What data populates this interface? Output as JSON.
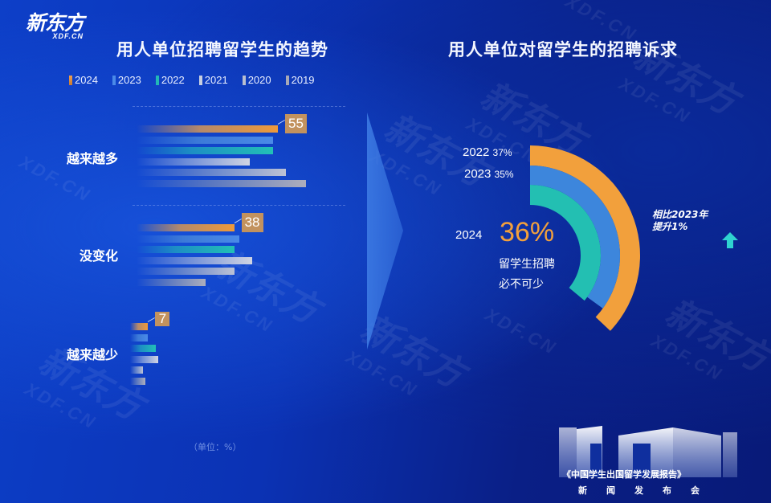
{
  "logo": {
    "chinese": "新东方",
    "english": "XDF.CN"
  },
  "watermark_text": "XDF.CN",
  "left_panel": {
    "title": "用人单位招聘留学生的趋势",
    "legend": [
      {
        "label": "2024",
        "color": "#e8963a"
      },
      {
        "label": "2023",
        "color": "#4a8ae8"
      },
      {
        "label": "2022",
        "color": "#22b8b6"
      },
      {
        "label": "2021",
        "color": "#c8cfe0"
      },
      {
        "label": "2020",
        "color": "#b8bfd0"
      },
      {
        "label": "2019",
        "color": "#a8a9b6"
      }
    ],
    "unit": "（单位：%）"
  },
  "right_panel": {
    "title": "用人单位对留学生的招聘诉求",
    "ring_labels": [
      {
        "year": "2022",
        "pct": "37%"
      },
      {
        "year": "2023",
        "pct": "35%"
      }
    ],
    "highlight_year": "2024",
    "highlight_pct": "36%",
    "note_line1": "留学生招聘",
    "note_line2": "必不可少",
    "compare_line1": "相比2023年",
    "compare_line2": "提升1%",
    "compare_icon": "up-arrow-icon"
  },
  "footer": {
    "report_title": "《中国学生出国留学发展报告》",
    "event": "新闻发布会",
    "badge_icon": "10-book-icon"
  },
  "chart_data": [
    {
      "type": "bar",
      "orientation": "horizontal",
      "title": "用人单位招聘留学生的趋势",
      "categories": [
        "越来越多",
        "没变化",
        "越来越少"
      ],
      "series": [
        {
          "name": "2024",
          "values": [
            55,
            38,
            7
          ]
        },
        {
          "name": "2023",
          "values": [
            53,
            40,
            7
          ]
        },
        {
          "name": "2022",
          "values": [
            53,
            38,
            10
          ]
        },
        {
          "name": "2021",
          "values": [
            44,
            45,
            11
          ]
        },
        {
          "name": "2020",
          "values": [
            58,
            38,
            5
          ]
        },
        {
          "name": "2019",
          "values": [
            66,
            27,
            6
          ]
        }
      ],
      "data_labels": {
        "2024": [
          55,
          38,
          7
        ]
      },
      "xlabel": "",
      "ylabel": "",
      "unit": "%",
      "legend_position": "top"
    },
    {
      "type": "pie",
      "variant": "concentric-radial-arcs",
      "title": "用人单位对留学生的招聘诉求",
      "categories": [
        "2022",
        "2023",
        "2024"
      ],
      "values": [
        37,
        35,
        36
      ],
      "colors": [
        "#f2a03c",
        "#3d86dc",
        "#23bfb2"
      ],
      "annotations": [
        "留学生招聘必不可少",
        "相比2023年提升1%"
      ]
    }
  ]
}
